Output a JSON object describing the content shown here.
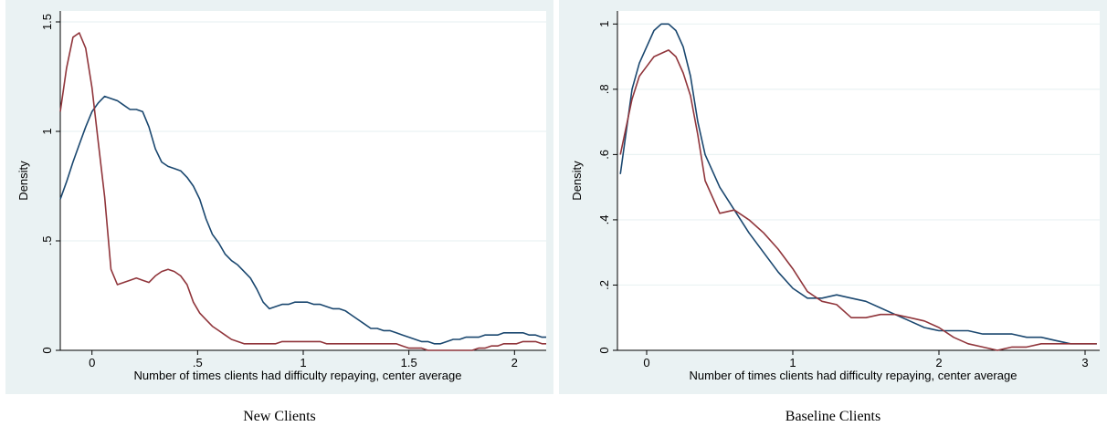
{
  "captions": [
    "New Clients",
    "Baseline Clients"
  ],
  "colors": {
    "series1": "#1a476f",
    "series2": "#90353b",
    "grid": "#eaf2f3",
    "background": "#eaf2f3",
    "plot": "#ffffff"
  },
  "chart_data": [
    {
      "type": "line",
      "title": "",
      "xlabel": "Number of times clients had difficulty repaying, center average",
      "ylabel": "Density",
      "xlim": [
        -0.15,
        2.15
      ],
      "ylim": [
        0,
        1.55
      ],
      "xticks": [
        0,
        0.5,
        1,
        1.5,
        2
      ],
      "xtick_labels": [
        "0",
        ".5",
        "1",
        "1.5",
        "2"
      ],
      "yticks": [
        0,
        0.5,
        1,
        1.5
      ],
      "ytick_labels": [
        "0",
        ".5",
        "1",
        "1.5"
      ],
      "grid": true,
      "series": [
        {
          "x": [
            -0.15,
            -0.12,
            -0.09,
            -0.06,
            -0.03,
            0,
            0.03,
            0.06,
            0.09,
            0.12,
            0.15,
            0.18,
            0.21,
            0.24,
            0.27,
            0.3,
            0.33,
            0.36,
            0.39,
            0.42,
            0.45,
            0.48,
            0.51,
            0.54,
            0.57,
            0.6,
            0.63,
            0.66,
            0.69,
            0.72,
            0.75,
            0.78,
            0.81,
            0.84,
            0.87,
            0.9,
            0.93,
            0.96,
            0.99,
            1.02,
            1.05,
            1.08,
            1.11,
            1.14,
            1.17,
            1.2,
            1.23,
            1.26,
            1.29,
            1.32,
            1.35,
            1.38,
            1.41,
            1.44,
            1.47,
            1.5,
            1.53,
            1.56,
            1.59,
            1.62,
            1.65,
            1.68,
            1.71,
            1.74,
            1.77,
            1.8,
            1.83,
            1.86,
            1.89,
            1.92,
            1.95,
            1.98,
            2.01,
            2.04,
            2.07,
            2.1,
            2.13,
            2.15
          ],
          "y": [
            0.69,
            0.77,
            0.86,
            0.94,
            1.02,
            1.09,
            1.13,
            1.16,
            1.15,
            1.14,
            1.12,
            1.1,
            1.1,
            1.09,
            1.02,
            0.92,
            0.86,
            0.84,
            0.83,
            0.82,
            0.79,
            0.75,
            0.69,
            0.6,
            0.53,
            0.49,
            0.44,
            0.41,
            0.39,
            0.36,
            0.33,
            0.28,
            0.22,
            0.19,
            0.2,
            0.21,
            0.21,
            0.22,
            0.22,
            0.22,
            0.21,
            0.21,
            0.2,
            0.19,
            0.19,
            0.18,
            0.16,
            0.14,
            0.12,
            0.1,
            0.1,
            0.09,
            0.09,
            0.08,
            0.07,
            0.06,
            0.05,
            0.04,
            0.04,
            0.03,
            0.03,
            0.04,
            0.05,
            0.05,
            0.06,
            0.06,
            0.06,
            0.07,
            0.07,
            0.07,
            0.08,
            0.08,
            0.08,
            0.08,
            0.07,
            0.07,
            0.06,
            0.06
          ]
        },
        {
          "x": [
            -0.15,
            -0.12,
            -0.09,
            -0.06,
            -0.03,
            0,
            0.03,
            0.06,
            0.09,
            0.12,
            0.15,
            0.18,
            0.21,
            0.24,
            0.27,
            0.3,
            0.33,
            0.36,
            0.39,
            0.42,
            0.45,
            0.48,
            0.51,
            0.54,
            0.57,
            0.6,
            0.63,
            0.66,
            0.69,
            0.72,
            0.75,
            0.78,
            0.81,
            0.84,
            0.87,
            0.9,
            0.93,
            0.96,
            0.99,
            1.02,
            1.05,
            1.08,
            1.11,
            1.14,
            1.17,
            1.2,
            1.23,
            1.26,
            1.29,
            1.32,
            1.35,
            1.38,
            1.41,
            1.44,
            1.47,
            1.5,
            1.53,
            1.56,
            1.59,
            1.62,
            1.65,
            1.68,
            1.71,
            1.74,
            1.77,
            1.8,
            1.83,
            1.86,
            1.89,
            1.92,
            1.95,
            1.98,
            2.01,
            2.04,
            2.07,
            2.1,
            2.13,
            2.15
          ],
          "y": [
            1.09,
            1.29,
            1.43,
            1.45,
            1.38,
            1.2,
            0.95,
            0.7,
            0.37,
            0.3,
            0.31,
            0.32,
            0.33,
            0.32,
            0.31,
            0.34,
            0.36,
            0.37,
            0.36,
            0.34,
            0.3,
            0.22,
            0.17,
            0.14,
            0.11,
            0.09,
            0.07,
            0.05,
            0.04,
            0.03,
            0.03,
            0.03,
            0.03,
            0.03,
            0.03,
            0.04,
            0.04,
            0.04,
            0.04,
            0.04,
            0.04,
            0.04,
            0.03,
            0.03,
            0.03,
            0.03,
            0.03,
            0.03,
            0.03,
            0.03,
            0.03,
            0.03,
            0.03,
            0.03,
            0.02,
            0.01,
            0.01,
            0.01,
            0.0,
            0.0,
            0.0,
            0.0,
            0.0,
            0.0,
            0.0,
            0.0,
            0.01,
            0.01,
            0.02,
            0.02,
            0.03,
            0.03,
            0.03,
            0.04,
            0.04,
            0.04,
            0.03,
            0.03
          ]
        }
      ]
    },
    {
      "type": "line",
      "title": "",
      "xlabel": "Number of times clients had difficulty repaying, center average",
      "ylabel": "Density",
      "xlim": [
        -0.2,
        3.1
      ],
      "ylim": [
        0,
        1.04
      ],
      "xticks": [
        0,
        1,
        2,
        3
      ],
      "xtick_labels": [
        "0",
        "1",
        "2",
        "3"
      ],
      "yticks": [
        0,
        0.2,
        0.4,
        0.6,
        0.8,
        1
      ],
      "ytick_labels": [
        "0",
        ".2",
        ".4",
        ".6",
        ".8",
        "1"
      ],
      "grid": true,
      "series": [
        {
          "x": [
            -0.18,
            -0.1,
            -0.05,
            0,
            0.05,
            0.1,
            0.15,
            0.2,
            0.25,
            0.3,
            0.35,
            0.4,
            0.5,
            0.6,
            0.7,
            0.8,
            0.9,
            1.0,
            1.1,
            1.2,
            1.3,
            1.4,
            1.5,
            1.6,
            1.7,
            1.8,
            1.9,
            2.0,
            2.1,
            2.2,
            2.3,
            2.4,
            2.5,
            2.6,
            2.7,
            2.8,
            2.9,
            3.0,
            3.08
          ],
          "y": [
            0.54,
            0.8,
            0.88,
            0.93,
            0.98,
            1.0,
            1.0,
            0.98,
            0.93,
            0.84,
            0.7,
            0.6,
            0.5,
            0.43,
            0.36,
            0.3,
            0.24,
            0.19,
            0.16,
            0.16,
            0.17,
            0.16,
            0.15,
            0.13,
            0.11,
            0.09,
            0.07,
            0.06,
            0.06,
            0.06,
            0.05,
            0.05,
            0.05,
            0.04,
            0.04,
            0.03,
            0.02,
            0.02,
            0.02
          ]
        },
        {
          "x": [
            -0.18,
            -0.1,
            -0.05,
            0,
            0.05,
            0.1,
            0.15,
            0.2,
            0.25,
            0.3,
            0.35,
            0.4,
            0.5,
            0.6,
            0.7,
            0.8,
            0.9,
            1.0,
            1.1,
            1.2,
            1.3,
            1.4,
            1.5,
            1.6,
            1.7,
            1.8,
            1.9,
            2.0,
            2.1,
            2.2,
            2.3,
            2.4,
            2.5,
            2.6,
            2.7,
            2.8,
            2.9,
            3.0,
            3.08
          ],
          "y": [
            0.6,
            0.77,
            0.84,
            0.87,
            0.9,
            0.91,
            0.92,
            0.9,
            0.85,
            0.78,
            0.66,
            0.52,
            0.42,
            0.43,
            0.4,
            0.36,
            0.31,
            0.25,
            0.18,
            0.15,
            0.14,
            0.1,
            0.1,
            0.11,
            0.11,
            0.1,
            0.09,
            0.07,
            0.04,
            0.02,
            0.01,
            0.0,
            0.01,
            0.01,
            0.02,
            0.02,
            0.02,
            0.02,
            0.02
          ]
        }
      ]
    }
  ]
}
